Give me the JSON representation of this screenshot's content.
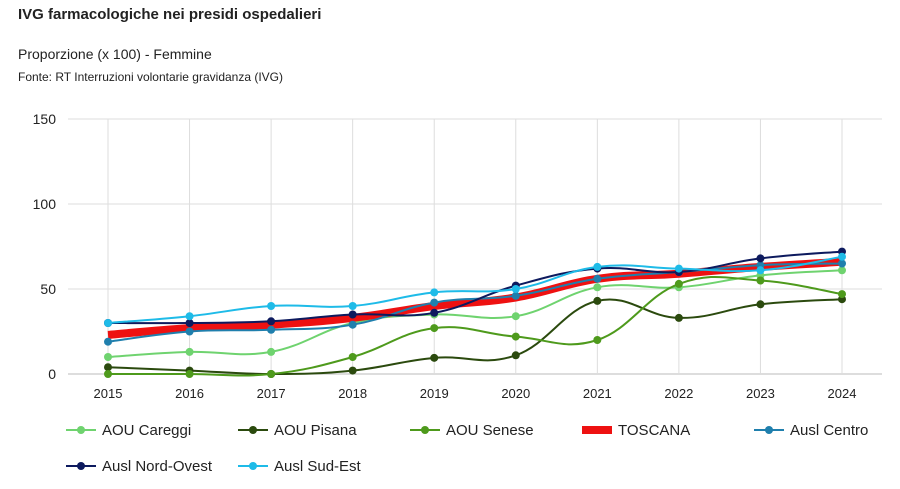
{
  "title": "IVG farmacologiche nei presidi ospedalieri",
  "subtitle": "Proporzione (x 100) - Femmine",
  "source": "Fonte: RT Interruzioni volontarie gravidanza (IVG)",
  "chart_data": {
    "type": "line",
    "x": [
      "2015",
      "2016",
      "2017",
      "2018",
      "2019",
      "2020",
      "2021",
      "2022",
      "2023",
      "2024"
    ],
    "ylim": [
      0,
      150
    ],
    "yticks": [
      0,
      50,
      100,
      150
    ],
    "grid": true,
    "legend": "bottom",
    "series": [
      {
        "name": "AOU Careggi",
        "color": "#6fd36f",
        "values": [
          10,
          13,
          13,
          30,
          35,
          34,
          51,
          51,
          58,
          61
        ]
      },
      {
        "name": "AOU Pisana",
        "color": "#2b4a0e",
        "values": [
          4,
          2,
          0,
          2,
          9.5,
          11,
          43,
          33,
          41,
          44
        ]
      },
      {
        "name": "AOU Senese",
        "color": "#4e9a1c",
        "values": [
          0,
          0,
          0,
          10,
          27,
          22,
          20,
          53,
          55,
          47
        ]
      },
      {
        "name": "TOSCANA",
        "color": "#ee1111",
        "values": [
          23,
          27,
          29,
          33,
          40,
          45,
          56,
          59,
          63,
          66
        ],
        "thick": true
      },
      {
        "name": "Ausl Centro",
        "color": "#1f7fad",
        "values": [
          19,
          25,
          26,
          29,
          42,
          46,
          56,
          60,
          64,
          65
        ]
      },
      {
        "name": "Ausl Nord-Ovest",
        "color": "#0d1a5e",
        "values": [
          30,
          30,
          31,
          35,
          36,
          52,
          62,
          60,
          68,
          72
        ]
      },
      {
        "name": "Ausl Sud-Est",
        "color": "#1ebbe8",
        "values": [
          30,
          34,
          40,
          40,
          48,
          50,
          63,
          62,
          61,
          69
        ]
      }
    ]
  }
}
